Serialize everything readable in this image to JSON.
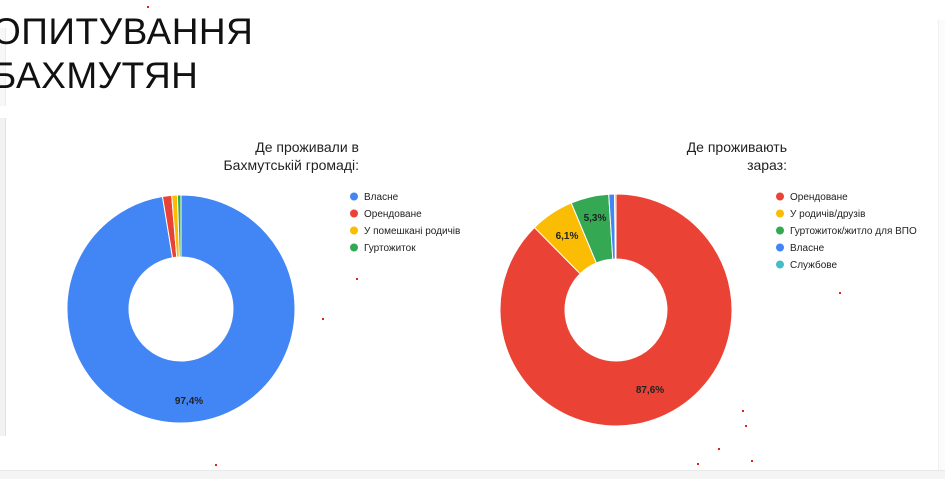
{
  "slide": {
    "title_lines": [
      "ОПИТУВАННЯ",
      "БАХМУТЯН"
    ]
  },
  "chart_data": [
    {
      "type": "pie",
      "donut": true,
      "title": "Де проживали в Бахмутській громаді:",
      "title_lines": [
        "Де проживали в",
        "Бахмутській громаді:"
      ],
      "legend_position": "right",
      "slices": [
        {
          "label": "Власне",
          "value": 97.4,
          "color": "#4285f4",
          "data_label": "97,4%"
        },
        {
          "label": "Орендоване",
          "value": 1.3,
          "color": "#ea4335",
          "data_label": ""
        },
        {
          "label": "У помешкані родичів",
          "value": 0.8,
          "color": "#fbbc04",
          "data_label": ""
        },
        {
          "label": "Гуртожиток",
          "value": 0.5,
          "color": "#34a853",
          "data_label": ""
        }
      ]
    },
    {
      "type": "pie",
      "donut": true,
      "title": "Де проживають зараз:",
      "title_lines": [
        "Де проживають",
        "зараз:"
      ],
      "legend_position": "right",
      "slices": [
        {
          "label": "Орендоване",
          "value": 87.6,
          "color": "#ea4335",
          "data_label": "87,6%"
        },
        {
          "label": "У родичів/друзів",
          "value": 6.1,
          "color": "#fbbc04",
          "data_label": "6,1%"
        },
        {
          "label": "Гуртожиток/житло для ВПО",
          "value": 5.3,
          "color": "#34a853",
          "data_label": "5,3%"
        },
        {
          "label": "Власне",
          "value": 0.8,
          "color": "#4285f4",
          "data_label": ""
        },
        {
          "label": "Службове",
          "value": 0.2,
          "color": "#46bdc6",
          "data_label": ""
        }
      ]
    }
  ]
}
